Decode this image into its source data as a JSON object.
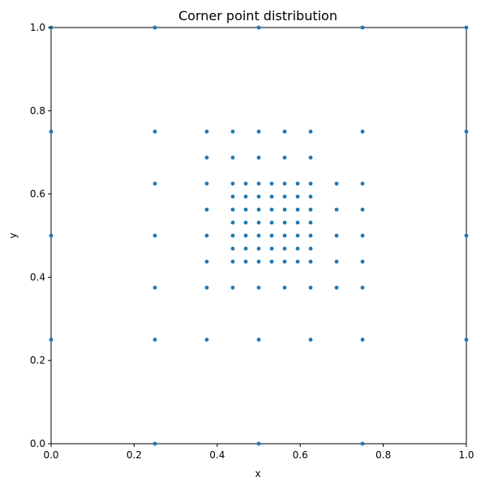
{
  "chart_data": {
    "type": "scatter",
    "title": "Corner point distribution",
    "xlabel": "x",
    "ylabel": "y",
    "xlim": [
      0.0,
      1.0
    ],
    "ylim": [
      0.0,
      1.0
    ],
    "xticks": [
      0.0,
      0.2,
      0.4,
      0.6,
      0.8,
      1.0
    ],
    "yticks": [
      0.0,
      0.2,
      0.4,
      0.6,
      0.8,
      1.0
    ],
    "xtick_labels": [
      "0.0",
      "0.2",
      "0.4",
      "0.6",
      "0.8",
      "1.0"
    ],
    "ytick_labels": [
      "0.0",
      "0.2",
      "0.4",
      "0.6",
      "0.8",
      "1.0"
    ],
    "grid": false,
    "marker_color": "#1f77b4",
    "series": [
      {
        "points": [
          [
            0.0,
            1.0
          ],
          [
            0.25,
            1.0
          ],
          [
            0.5,
            1.0
          ],
          [
            0.75,
            1.0
          ],
          [
            1.0,
            1.0
          ],
          [
            0.0,
            0.75
          ],
          [
            0.25,
            0.75
          ],
          [
            0.375,
            0.75
          ],
          [
            0.4375,
            0.75
          ],
          [
            0.5,
            0.75
          ],
          [
            0.5625,
            0.75
          ],
          [
            0.625,
            0.75
          ],
          [
            0.75,
            0.75
          ],
          [
            1.0,
            0.75
          ],
          [
            0.375,
            0.6875
          ],
          [
            0.4375,
            0.6875
          ],
          [
            0.5,
            0.6875
          ],
          [
            0.5625,
            0.6875
          ],
          [
            0.625,
            0.6875
          ],
          [
            0.25,
            0.625
          ],
          [
            0.375,
            0.625
          ],
          [
            0.4375,
            0.625
          ],
          [
            0.46875,
            0.625
          ],
          [
            0.5,
            0.625
          ],
          [
            0.53125,
            0.625
          ],
          [
            0.5625,
            0.625
          ],
          [
            0.59375,
            0.625
          ],
          [
            0.625,
            0.625
          ],
          [
            0.6875,
            0.625
          ],
          [
            0.75,
            0.625
          ],
          [
            0.4375,
            0.59375
          ],
          [
            0.46875,
            0.59375
          ],
          [
            0.5,
            0.59375
          ],
          [
            0.53125,
            0.59375
          ],
          [
            0.5625,
            0.59375
          ],
          [
            0.59375,
            0.59375
          ],
          [
            0.625,
            0.59375
          ],
          [
            0.375,
            0.5625
          ],
          [
            0.4375,
            0.5625
          ],
          [
            0.46875,
            0.5625
          ],
          [
            0.5,
            0.5625
          ],
          [
            0.53125,
            0.5625
          ],
          [
            0.5625,
            0.5625
          ],
          [
            0.59375,
            0.5625
          ],
          [
            0.625,
            0.5625
          ],
          [
            0.6875,
            0.5625
          ],
          [
            0.75,
            0.5625
          ],
          [
            0.4375,
            0.53125
          ],
          [
            0.46875,
            0.53125
          ],
          [
            0.5,
            0.53125
          ],
          [
            0.53125,
            0.53125
          ],
          [
            0.5625,
            0.53125
          ],
          [
            0.59375,
            0.53125
          ],
          [
            0.625,
            0.53125
          ],
          [
            0.0,
            0.5
          ],
          [
            0.25,
            0.5
          ],
          [
            0.375,
            0.5
          ],
          [
            0.4375,
            0.5
          ],
          [
            0.46875,
            0.5
          ],
          [
            0.5,
            0.5
          ],
          [
            0.53125,
            0.5
          ],
          [
            0.5625,
            0.5
          ],
          [
            0.59375,
            0.5
          ],
          [
            0.625,
            0.5
          ],
          [
            0.6875,
            0.5
          ],
          [
            0.75,
            0.5
          ],
          [
            1.0,
            0.5
          ],
          [
            0.4375,
            0.46875
          ],
          [
            0.46875,
            0.46875
          ],
          [
            0.5,
            0.46875
          ],
          [
            0.53125,
            0.46875
          ],
          [
            0.5625,
            0.46875
          ],
          [
            0.59375,
            0.46875
          ],
          [
            0.625,
            0.46875
          ],
          [
            0.375,
            0.4375
          ],
          [
            0.4375,
            0.4375
          ],
          [
            0.46875,
            0.4375
          ],
          [
            0.5,
            0.4375
          ],
          [
            0.53125,
            0.4375
          ],
          [
            0.5625,
            0.4375
          ],
          [
            0.59375,
            0.4375
          ],
          [
            0.625,
            0.4375
          ],
          [
            0.6875,
            0.4375
          ],
          [
            0.75,
            0.4375
          ],
          [
            0.25,
            0.375
          ],
          [
            0.375,
            0.375
          ],
          [
            0.4375,
            0.375
          ],
          [
            0.5,
            0.375
          ],
          [
            0.5625,
            0.375
          ],
          [
            0.625,
            0.375
          ],
          [
            0.6875,
            0.375
          ],
          [
            0.75,
            0.375
          ],
          [
            0.0,
            0.25
          ],
          [
            0.25,
            0.25
          ],
          [
            0.375,
            0.25
          ],
          [
            0.5,
            0.25
          ],
          [
            0.625,
            0.25
          ],
          [
            0.75,
            0.25
          ],
          [
            1.0,
            0.25
          ],
          [
            0.25,
            0.0
          ],
          [
            0.5,
            0.0
          ],
          [
            0.75,
            0.0
          ]
        ]
      }
    ]
  }
}
